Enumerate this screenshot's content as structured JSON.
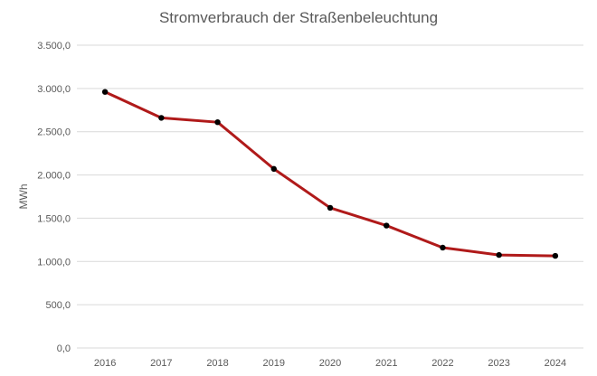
{
  "chart_data": {
    "type": "line",
    "title": "Stromverbrauch der Straßenbeleuchtung",
    "xlabel": "",
    "ylabel": "MWh",
    "categories": [
      "2016",
      "2017",
      "2018",
      "2019",
      "2020",
      "2021",
      "2022",
      "2023",
      "2024"
    ],
    "series": [
      {
        "values": [
          2960,
          2660,
          2610,
          2070,
          1620,
          1415,
          1160,
          1075,
          1065
        ]
      }
    ],
    "ylim": [
      0,
      3500
    ],
    "yticks": [
      0,
      500,
      1000,
      1500,
      2000,
      2500,
      3000,
      3500
    ],
    "ytick_labels": [
      "0,0",
      "500,0",
      "1.000,0",
      "1.500,0",
      "2.000,0",
      "2.500,0",
      "3.000,0",
      "3.500,0"
    ],
    "grid": true,
    "legend": "none",
    "colors": {
      "line": "#b01a1a",
      "marker": "#000000",
      "grid": "#d9d9d9",
      "text": "#595959"
    }
  }
}
